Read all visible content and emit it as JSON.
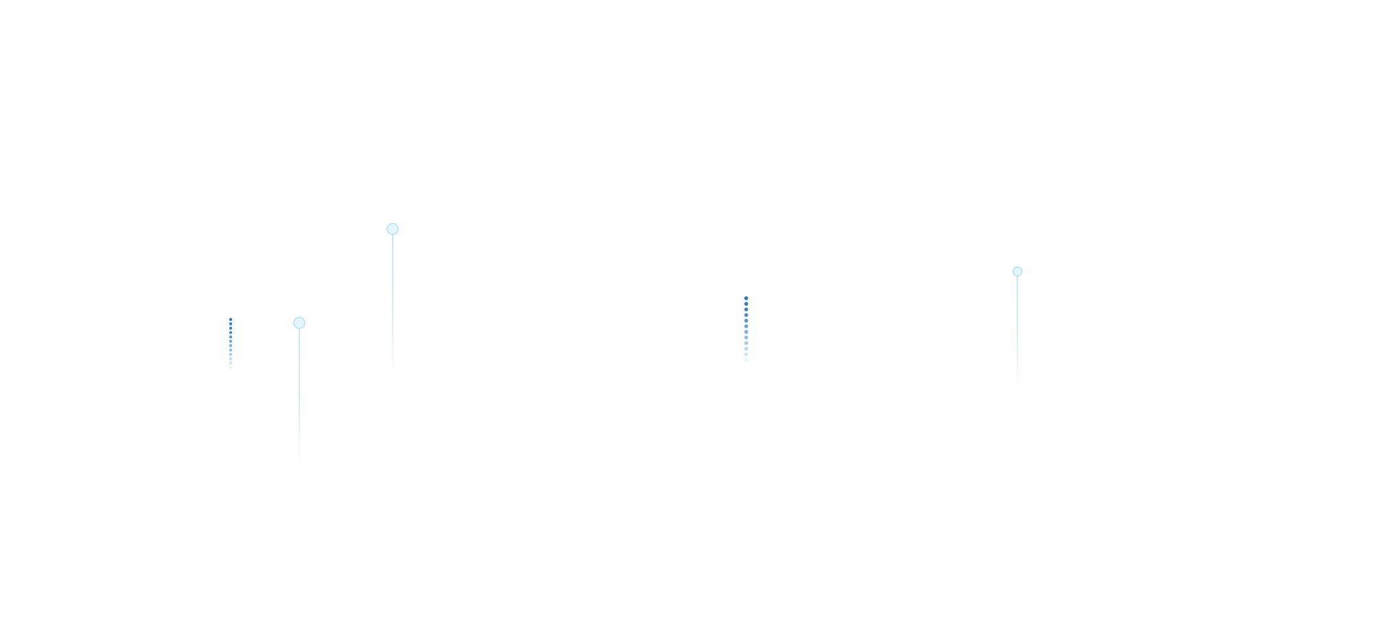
{
  "colors": {
    "background": "#fefefe",
    "dot_dark": "#2f74b5",
    "dot_light": "#e3f4fc",
    "pin_fill": "#e3f5fd",
    "pin_stroke": "#b5dff4",
    "pin_line": "#b9dcf2"
  },
  "decorations": {
    "dot_columns": [
      {
        "dot_count": 12
      },
      {
        "dot_count": 12
      }
    ],
    "pins": [
      {
        "icon": "pin-marker"
      },
      {
        "icon": "pin-marker"
      },
      {
        "icon": "pin-marker"
      }
    ]
  }
}
